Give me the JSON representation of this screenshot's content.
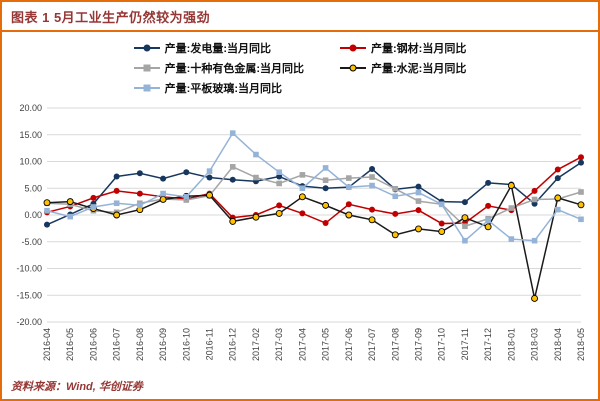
{
  "header": {
    "title": "图表 1 5月工业生产仍然较为强劲"
  },
  "footer": {
    "source": "资料来源：Wind, 华创证券"
  },
  "accent_colors": {
    "frame": "#E46C0A",
    "title_text": "#953735"
  },
  "chart_data": {
    "type": "line",
    "title": "5月工业生产仍然较为强劲",
    "xlabel": "",
    "ylabel": "",
    "ylim": [
      -20,
      20
    ],
    "ytick_step": 5,
    "ytick_labels": [
      "20.00",
      "15.00",
      "10.00",
      "5.00",
      "0.00",
      "-5.00",
      "-10.00",
      "-15.00",
      "-20.00"
    ],
    "grid": true,
    "legend_position": "top",
    "categories": [
      "2016-04",
      "2016-05",
      "2016-06",
      "2016-07",
      "2016-08",
      "2016-09",
      "2016-10",
      "2016-11",
      "2016-12",
      "2017-02",
      "2017-03",
      "2017-04",
      "2017-05",
      "2017-06",
      "2017-07",
      "2017-08",
      "2017-09",
      "2017-10",
      "2017-11",
      "2017-12",
      "2018-01",
      "2018-03",
      "2018-04",
      "2018-05"
    ],
    "series": [
      {
        "name": "产量:发电量:当月同比",
        "color": "#17375E",
        "marker": "circle",
        "icon": "power-series-marker-icon",
        "values": [
          -1.8,
          0.1,
          2.1,
          7.2,
          7.8,
          6.8,
          8.0,
          7.0,
          6.6,
          6.3,
          7.2,
          5.4,
          5.0,
          5.2,
          8.6,
          4.8,
          5.3,
          2.5,
          2.4,
          6.0,
          5.7,
          2.1,
          6.9,
          9.8
        ]
      },
      {
        "name": "产量:钢材:当月同比",
        "color": "#C00000",
        "marker": "circle",
        "icon": "steel-series-marker-icon",
        "values": [
          0.5,
          1.6,
          3.2,
          4.5,
          4.0,
          3.4,
          3.0,
          4.0,
          -0.5,
          0.0,
          1.8,
          0.3,
          -1.5,
          2.0,
          1.0,
          0.2,
          0.9,
          -1.6,
          -1.5,
          1.7,
          0.9,
          4.5,
          8.5,
          10.8
        ]
      },
      {
        "name": "产量:十种有色金属:当月同比",
        "color": "#A5A5A5",
        "marker": "square",
        "icon": "nonferrous-series-marker-icon",
        "values": [
          2.2,
          2.0,
          0.8,
          0.5,
          2.2,
          3.0,
          2.8,
          3.6,
          9.0,
          7.0,
          5.9,
          7.5,
          6.5,
          6.9,
          7.1,
          4.9,
          2.6,
          2.0,
          -2.1,
          -0.7,
          1.3,
          2.9,
          3.0,
          4.3
        ]
      },
      {
        "name": "产量:水泥:当月同比",
        "color": "#1A1A1A",
        "marker": "circle",
        "marker_color": "#FFC000",
        "marker_stroke": "#000000",
        "icon": "cement-series-marker-icon",
        "values": [
          2.3,
          2.5,
          1.2,
          0.0,
          1.0,
          2.9,
          3.5,
          3.7,
          -1.2,
          -0.4,
          0.3,
          3.4,
          1.8,
          0.0,
          -0.9,
          -3.7,
          -2.6,
          -3.1,
          -0.5,
          -2.2,
          5.5,
          -15.6,
          3.2,
          1.9
        ]
      },
      {
        "name": "产量:平板玻璃:当月同比",
        "color": "#95B3D7",
        "marker": "square",
        "icon": "glass-series-marker-icon",
        "values": [
          0.8,
          -0.3,
          1.5,
          2.2,
          1.8,
          4.0,
          3.4,
          8.2,
          15.3,
          11.3,
          8.0,
          5.0,
          8.8,
          5.2,
          5.5,
          3.5,
          4.2,
          2.0,
          -4.8,
          -1.0,
          -4.5,
          -4.8,
          1.0,
          -0.8
        ]
      }
    ]
  }
}
